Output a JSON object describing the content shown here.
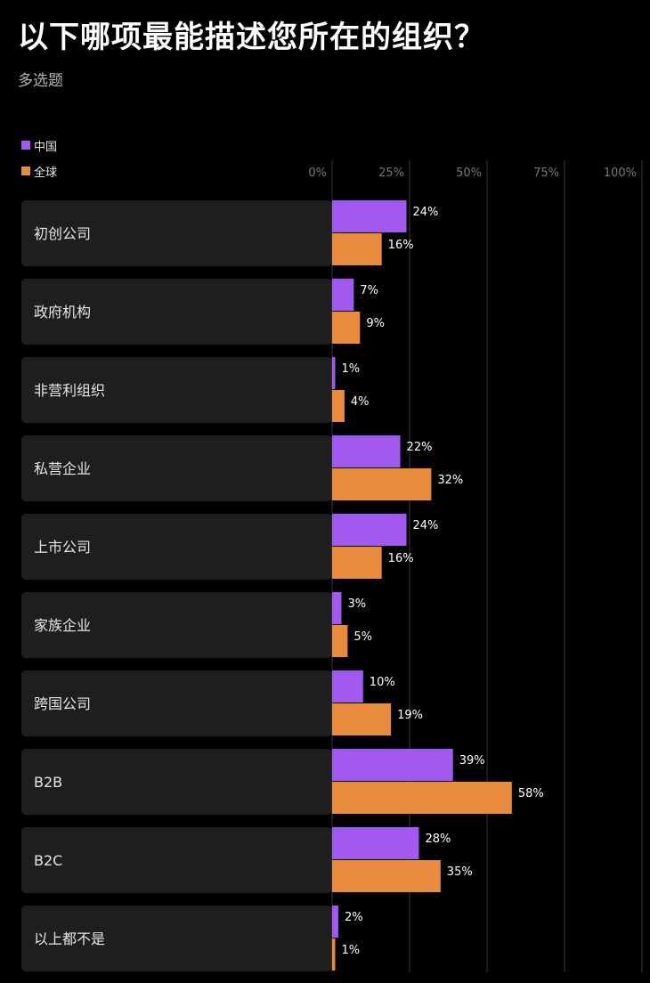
{
  "header": {
    "title": "以下哪项最能描述您所在的组织？",
    "subtitle": "多选题"
  },
  "colors": {
    "china": "#a259f0",
    "global": "#e88b3f",
    "background": "#000000",
    "row_background": "#1e1e1e",
    "grid": "#3a3a3a"
  },
  "chart_data": {
    "type": "bar",
    "orientation": "horizontal",
    "categories": [
      "初创公司",
      "政府机构",
      "非营利组织",
      "私营企业",
      "上市公司",
      "家族企业",
      "跨国公司",
      "B2B",
      "B2C",
      "以上都不是"
    ],
    "series": [
      {
        "name": "中国",
        "values": [
          24,
          7,
          1,
          22,
          24,
          3,
          10,
          39,
          28,
          2
        ]
      },
      {
        "name": "全球",
        "values": [
          16,
          9,
          4,
          32,
          16,
          5,
          19,
          58,
          35,
          1
        ]
      }
    ],
    "xlim": [
      0,
      100
    ],
    "ticks": [
      "0%",
      "25%",
      "50%",
      "75%",
      "100%"
    ],
    "value_suffix": "%",
    "grid": true,
    "legend_position": "top-left"
  }
}
